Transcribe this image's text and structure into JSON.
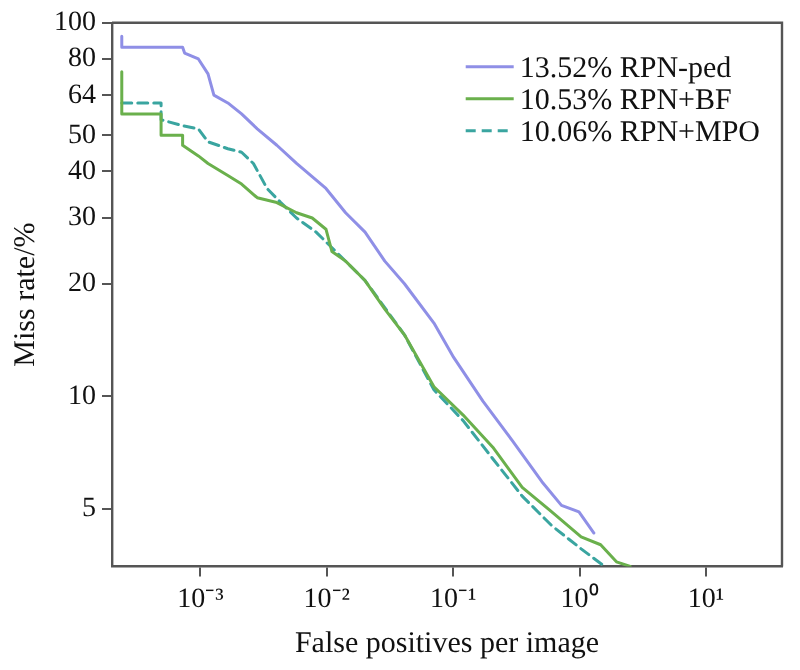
{
  "chart_data": {
    "type": "line",
    "xlabel": "False positives per image",
    "ylabel": "Miss rate/%",
    "log": "xy",
    "xlim": [
      0.0002,
      40
    ],
    "ylim": [
      3.5,
      100
    ],
    "xticks": [
      {
        "value": 0.001,
        "label": "10⁻³"
      },
      {
        "value": 0.01,
        "label": "10⁻²"
      },
      {
        "value": 0.1,
        "label": "10⁻¹"
      },
      {
        "value": 1,
        "label": "10⁰"
      },
      {
        "value": 10,
        "label": "10¹"
      }
    ],
    "yticks": [
      5,
      10,
      20,
      30,
      40,
      50,
      64,
      80,
      100
    ],
    "grid": false,
    "legend": "top right",
    "marker": "none",
    "series": [
      {
        "name": "13.52% RPN-ped",
        "color": "#8f8fe6",
        "line_style": "solid",
        "x": [
          0.000239,
          0.000239,
          0.000724,
          0.000751,
          0.000965,
          0.00115,
          0.00128,
          0.00165,
          0.00212,
          0.00282,
          0.00403,
          0.00577,
          0.00986,
          0.0141,
          0.0201,
          0.0288,
          0.0412,
          0.0705,
          0.101,
          0.172,
          0.294,
          0.504,
          0.72,
          0.99,
          1.3
        ],
        "values": [
          92,
          86,
          86,
          83,
          80,
          73,
          64,
          61,
          57,
          52,
          47,
          42,
          36,
          31,
          27.5,
          23,
          20,
          15.7,
          12.7,
          9.7,
          7.6,
          5.9,
          5.1,
          4.9,
          4.3
        ]
      },
      {
        "name": "10.53% RPN+BF",
        "color": "#6ab04c",
        "line_style": "solid",
        "x": [
          0.000239,
          0.000239,
          0.000489,
          0.000489,
          0.000724,
          0.000724,
          0.000965,
          0.00115,
          0.00165,
          0.00212,
          0.00282,
          0.00403,
          0.00577,
          0.00768,
          0.00986,
          0.011,
          0.0141,
          0.0201,
          0.0288,
          0.0412,
          0.0705,
          0.12,
          0.206,
          0.352,
          0.603,
          1.03,
          1.47,
          1.96,
          2.52
        ],
        "values": [
          74,
          57,
          57,
          50,
          50,
          47,
          44,
          42,
          39,
          37,
          34,
          33,
          31,
          30,
          28,
          24.4,
          23,
          20.4,
          17.1,
          14.6,
          10.6,
          8.9,
          7.3,
          5.7,
          4.9,
          4.2,
          4.0,
          3.6,
          3.5
        ]
      },
      {
        "name": "10.06% RPN+MPO",
        "color": "#3aa5a0",
        "line_style": "dashed",
        "x": [
          0.000239,
          0.000489,
          0.000489,
          0.000724,
          0.000965,
          0.00115,
          0.00165,
          0.00212,
          0.00263,
          0.00337,
          0.00433,
          0.00577,
          0.00824,
          0.0118,
          0.0201,
          0.0412,
          0.0705,
          0.12,
          0.206,
          0.352,
          0.603,
          1.03,
          1.58
        ],
        "values": [
          61,
          61,
          55,
          53,
          52,
          48,
          46,
          45,
          42,
          36,
          33,
          30,
          27.5,
          24.4,
          20.4,
          14.6,
          10.4,
          8.6,
          6.8,
          5.4,
          4.5,
          3.9,
          3.5
        ]
      }
    ]
  }
}
